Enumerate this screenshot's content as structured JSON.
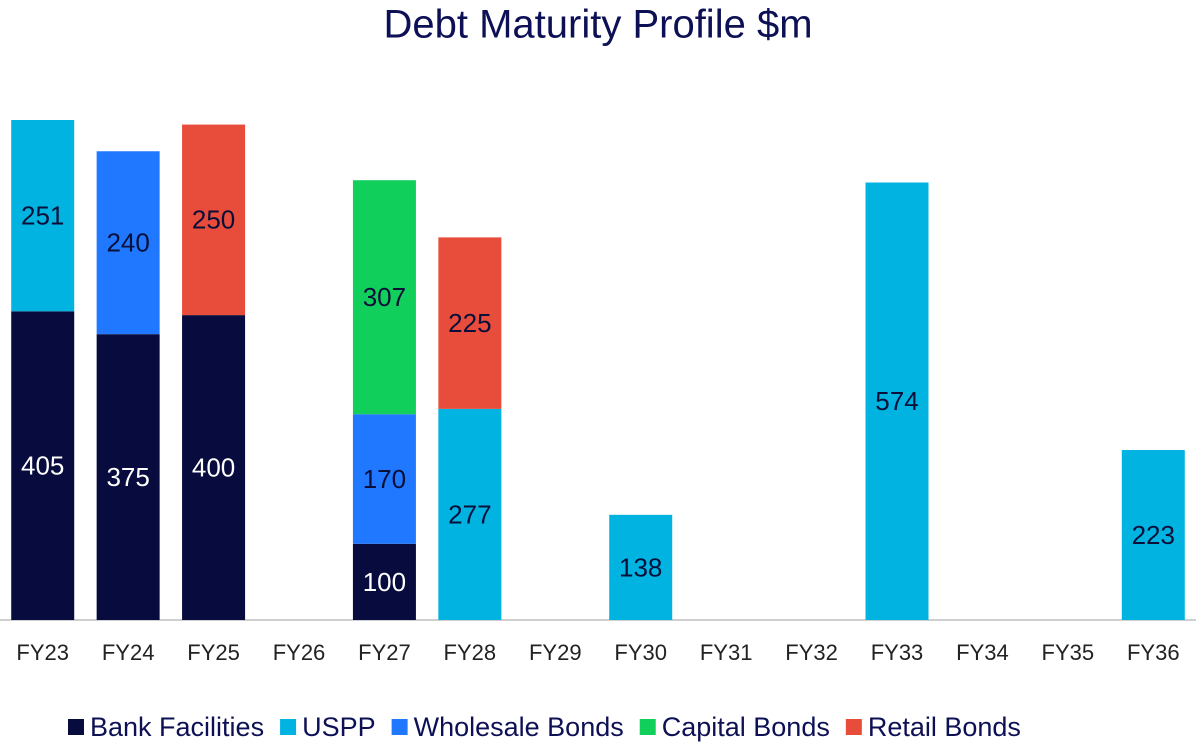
{
  "chart_data": {
    "type": "stacked_bar",
    "title": "Debt Maturity Profile $m",
    "categories": [
      "FY23",
      "FY24",
      "FY25",
      "FY26",
      "FY27",
      "FY28",
      "FY29",
      "FY30",
      "FY31",
      "FY32",
      "FY33",
      "FY34",
      "FY35",
      "FY36"
    ],
    "series": [
      {
        "name": "Bank Facilities",
        "color": "#070b3d",
        "label_color": "#ffffff",
        "values": [
          405,
          375,
          400,
          null,
          100,
          null,
          null,
          null,
          null,
          null,
          null,
          null,
          null,
          null
        ]
      },
      {
        "name": "USPP",
        "color": "#00b3e0",
        "label_color": "#0a0f3a",
        "values": [
          251,
          null,
          null,
          null,
          null,
          277,
          null,
          138,
          null,
          null,
          574,
          null,
          null,
          223
        ]
      },
      {
        "name": "Wholesale Bonds",
        "color": "#1f78ff",
        "label_color": "#0a0f3a",
        "values": [
          null,
          240,
          null,
          null,
          170,
          null,
          null,
          null,
          null,
          null,
          null,
          null,
          null,
          null
        ]
      },
      {
        "name": "Capital Bonds",
        "color": "#10cf5a",
        "label_color": "#0a0f3a",
        "values": [
          null,
          null,
          null,
          null,
          307,
          null,
          null,
          null,
          null,
          null,
          null,
          null,
          null,
          null
        ]
      },
      {
        "name": "Retail Bonds",
        "color": "#e84c3a",
        "label_color": "#0a0f3a",
        "values": [
          null,
          null,
          250,
          null,
          null,
          225,
          null,
          null,
          null,
          null,
          null,
          null,
          null,
          null
        ]
      }
    ],
    "legend": "bottom"
  }
}
